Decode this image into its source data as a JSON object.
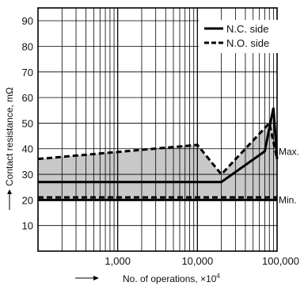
{
  "chart_data": {
    "type": "line",
    "xscale": "log",
    "xlim": [
      100,
      100000
    ],
    "ylim": [
      0,
      95
    ],
    "grid": true,
    "legend_position": "top-right",
    "xlabel": "No. of operations, ×10",
    "xlabel_exp": "4",
    "ylabel": "Contact resistance, mΩ",
    "y_ticks": [
      "10",
      "20",
      "30",
      "40",
      "50",
      "60",
      "70",
      "80",
      "90"
    ],
    "y_tick_values": [
      10,
      20,
      30,
      40,
      50,
      60,
      70,
      80,
      90
    ],
    "x_ticks": [
      "1,000",
      "10,000",
      "100,000"
    ],
    "x_tick_values": [
      1000,
      10000,
      100000
    ],
    "series": [
      {
        "name": "N.C. side",
        "style": "solid",
        "curves": [
          {
            "x": [
              100,
              20000,
              70000,
              90000,
              100000
            ],
            "y": [
              27,
              27,
              39,
              56,
              36
            ]
          },
          {
            "x": [
              100,
              100000
            ],
            "y": [
              20,
              20
            ]
          }
        ]
      },
      {
        "name": "N.O. side",
        "style": "dashed",
        "curves": [
          {
            "x": [
              100,
              10000,
              20000,
              80000,
              100000
            ],
            "y": [
              36,
              41.5,
              30,
              50,
              36
            ]
          },
          {
            "x": [
              100,
              100000
            ],
            "y": [
              21,
              21
            ]
          }
        ]
      }
    ],
    "band": {
      "x": [
        100,
        10000,
        20000,
        80000,
        90000,
        100000
      ],
      "upper": [
        36,
        41.5,
        30,
        50,
        56,
        36
      ],
      "lower": [
        20,
        20,
        20,
        20,
        20,
        20
      ],
      "color": "#c8c8c8"
    },
    "annotations": [
      "Max.",
      "Min."
    ]
  }
}
